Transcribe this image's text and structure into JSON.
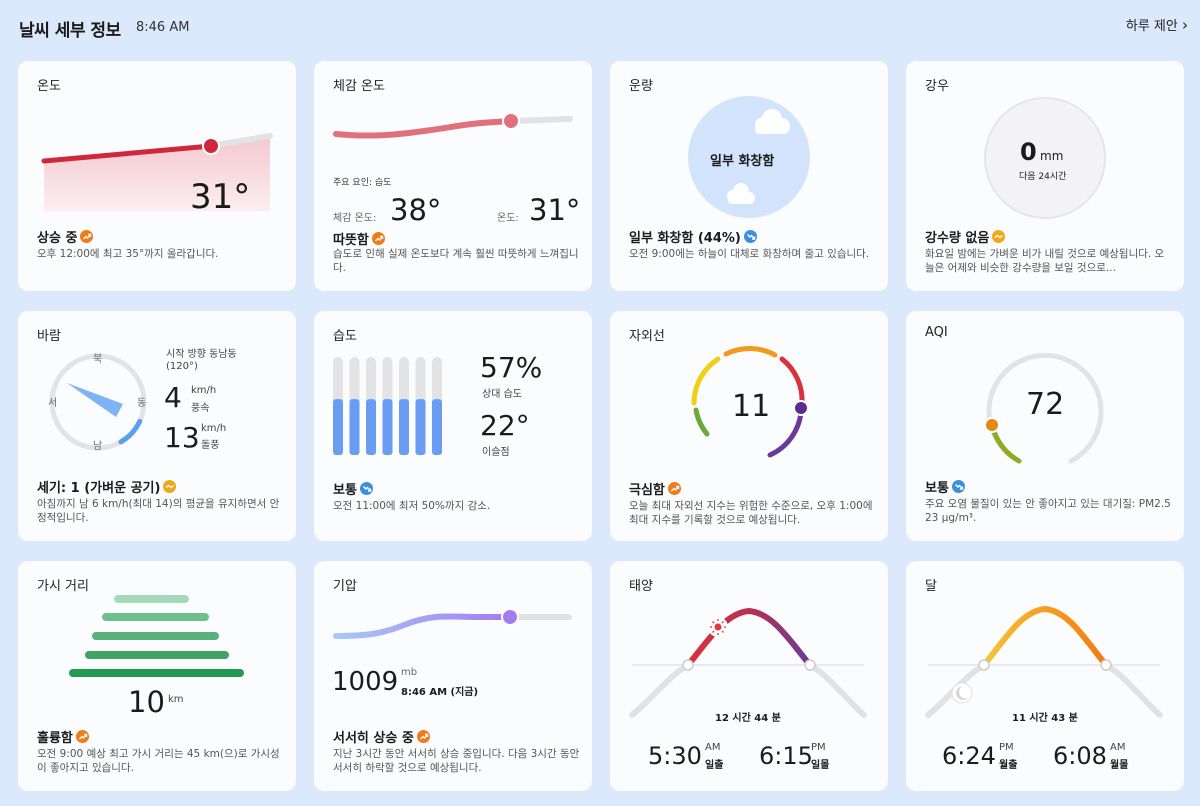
{
  "header": {
    "title": "날씨 세부 정보",
    "time": "8:46 AM",
    "daily_link": "하루 제안",
    "chevron": "›"
  },
  "colors": {
    "up": "#f07b1a",
    "down": "#3b8fe0",
    "neutral": "#f0a81a"
  },
  "temperature": {
    "title": "온도",
    "value": "31°",
    "status": "상승 중",
    "trend": "up",
    "desc": "오후 12:00에 최고 35°까지 올라갑니다."
  },
  "feels": {
    "title": "체감 온도",
    "factor": "주요 요인: 습도",
    "feels_label": "체감 온도:",
    "feels_value": "38°",
    "temp_label": "온도:",
    "temp_value": "31°",
    "status": "따뜻함",
    "trend": "up",
    "desc": "습도로 인해 실제 온도보다 계속 훨씬 따뜻하게 느껴집니다."
  },
  "cloud": {
    "title": "운량",
    "center": "일부 화창함",
    "status": "일부 화창함 (44%)",
    "trend": "down",
    "desc": "오전 9:00에는 하늘이 대체로 화창하며 줄고 있습니다."
  },
  "rain": {
    "title": "강우",
    "value": "0",
    "unit": "mm",
    "sub": "다음 24시간",
    "status": "강수량 없음",
    "trend": "neutral",
    "desc": "화요일 밤에는 가벼운 비가 내릴 것으로 예상됩니다. 오늘은 어제와 비슷한 강수량을 보일 것으로..."
  },
  "wind": {
    "title": "바람",
    "dir_label": "시작 방향 동남동",
    "dir_deg": "(120°)",
    "north": "북",
    "south": "남",
    "east": "동",
    "west": "서",
    "speed": "4",
    "speed_unit": "km/h",
    "speed_label": "풍속",
    "gust": "13",
    "gust_unit": "km/h",
    "gust_label": "돌풍",
    "status": "세기: 1 (가벼운 공기)",
    "trend": "neutral",
    "desc": "아침까지 남 6 km/h(최대 14)의 평균을 유지하면서 안정적입니다.",
    "direction_degrees": 120
  },
  "humidity": {
    "title": "습도",
    "value": "57%",
    "value_label": "상대 습도",
    "dew": "22°",
    "dew_label": "이슬점",
    "status": "보통",
    "trend": "down",
    "desc": "오전 11:00에 최저 50%까지 감소.",
    "bars": [
      0.57,
      0.57,
      0.57,
      0.57,
      0.57,
      0.57,
      0.57
    ]
  },
  "uv": {
    "title": "자외선",
    "value": "11",
    "status": "극심함",
    "trend": "up",
    "desc": "오늘 최대 자외선 지수는 위험한 수준으로, 오후 1:00에 최대 지수를 기록할 것으로 예상됩니다."
  },
  "aqi": {
    "title": "AQI",
    "value": "72",
    "status": "보통",
    "trend": "down",
    "desc": "주요 오염 물질이 있는 안 좋아지고 있는 대기질: PM2.5 23 µg/m³."
  },
  "visibility": {
    "title": "가시 거리",
    "value": "10",
    "unit": "km",
    "status": "훌륭함",
    "trend": "up",
    "desc": "오전 9:00 예상 최고 가시 거리는 45 km(으)로 가시성이 좋아지고 있습니다."
  },
  "pressure": {
    "title": "기압",
    "value": "1009",
    "unit": "mb",
    "time": "8:46 AM (지금)",
    "status": "서서히 상승 중",
    "trend": "up",
    "desc": "지난 3시간 동안 서서히 상승 중입니다. 다음 3시간 동안 서서히 하락할 것으로 예상됩니다."
  },
  "sun": {
    "title": "태양",
    "duration": "12 시간 44 분",
    "rise": "5:30",
    "rise_ampm": "AM",
    "rise_label": "일출",
    "set": "6:15",
    "set_ampm": "PM",
    "set_label": "일몰"
  },
  "moon": {
    "title": "달",
    "duration": "11 시간 43 분",
    "rise": "6:24",
    "rise_ampm": "PM",
    "rise_label": "월출",
    "set": "6:08",
    "set_ampm": "AM",
    "set_label": "월몰"
  }
}
